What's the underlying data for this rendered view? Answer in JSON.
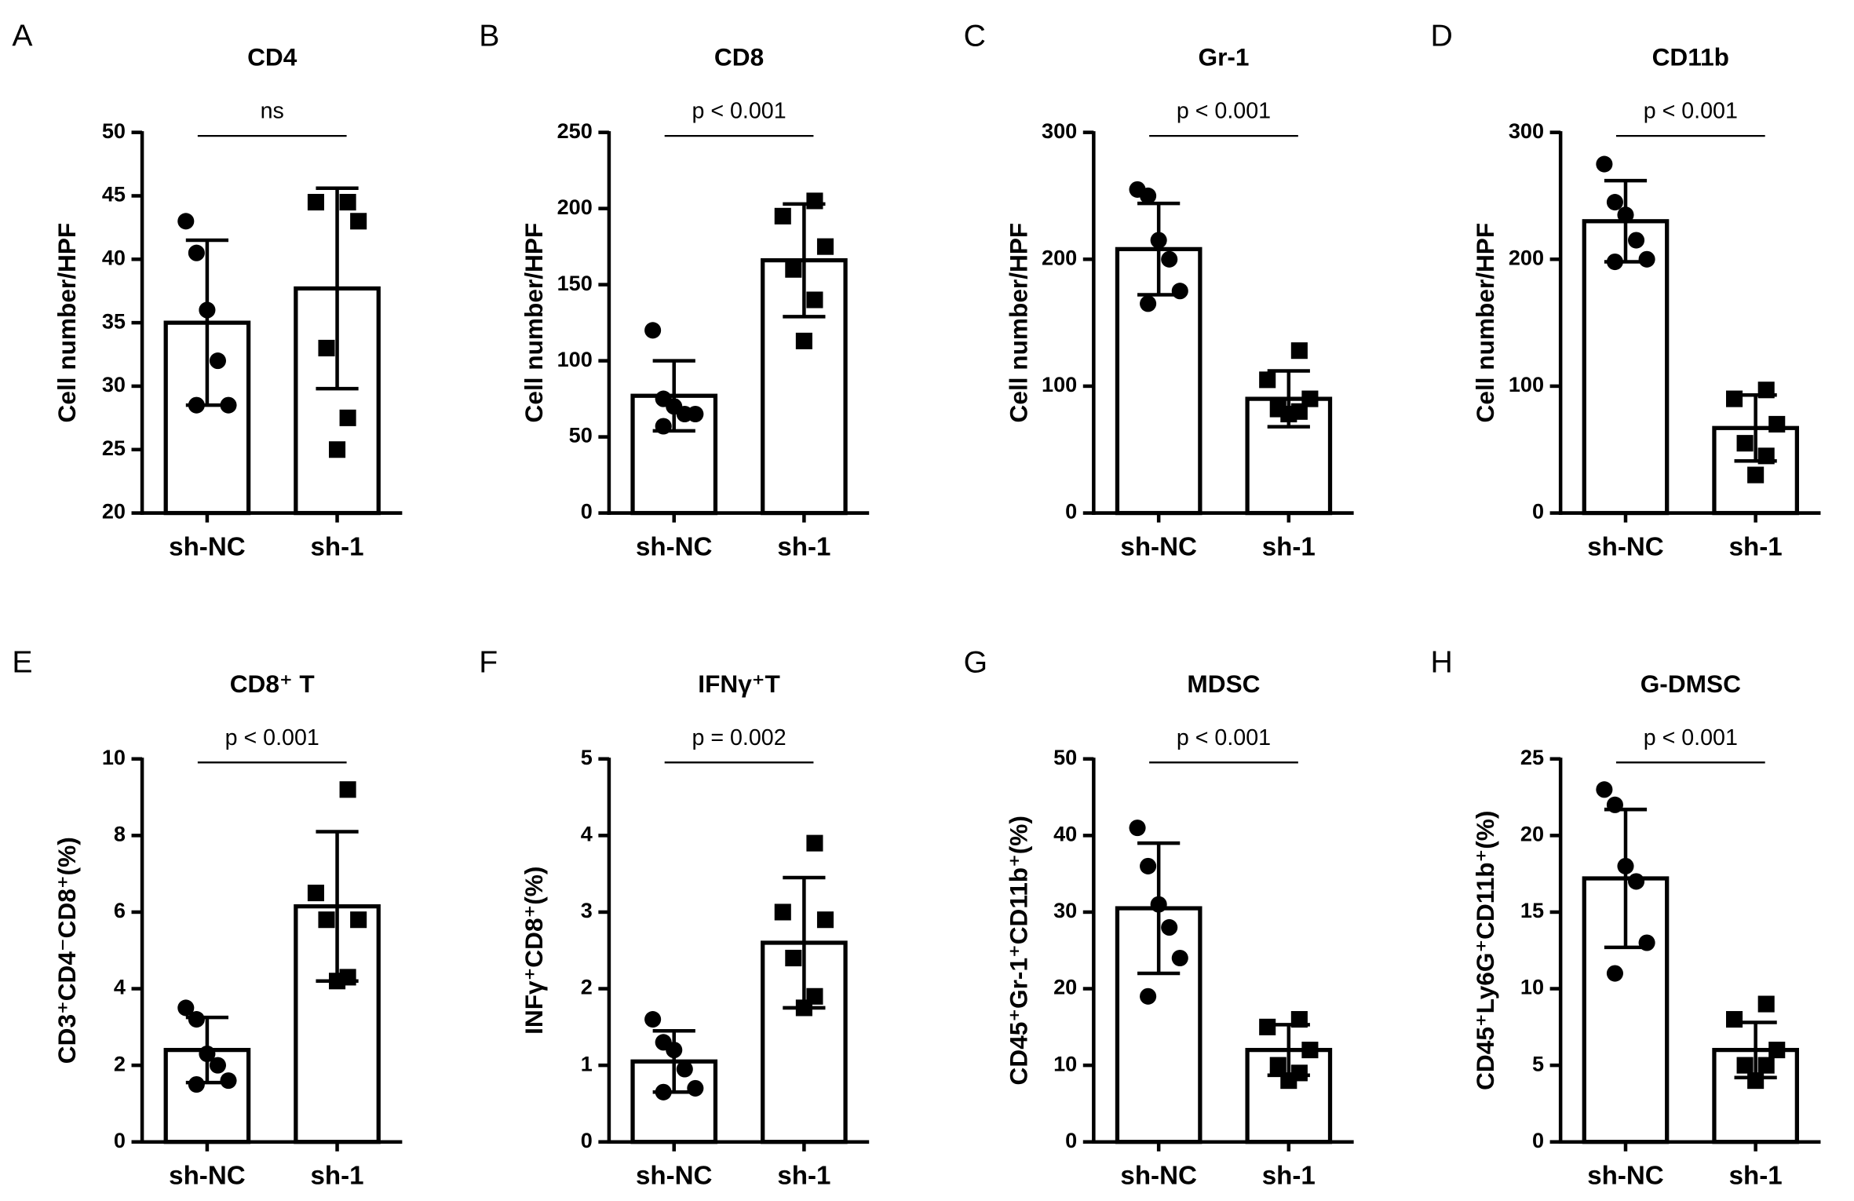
{
  "chart_data": [
    {
      "type": "bar",
      "panel": "A",
      "title": "CD4",
      "ylabel": "Cell number/HPF",
      "annotation": "ns",
      "categories": [
        "sh-NC",
        "sh-1"
      ],
      "values": [
        35,
        37.7
      ],
      "errors": [
        6.5,
        7.9
      ],
      "points": [
        [
          43,
          40.5,
          36,
          32,
          28.5,
          28.5
        ],
        [
          44.5,
          44.5,
          43,
          33,
          27.5,
          25
        ]
      ],
      "markers": [
        "circle",
        "square"
      ],
      "color": "#000000",
      "ylim": [
        20,
        50
      ],
      "yticks": [
        20,
        25,
        30,
        35,
        40,
        45,
        50
      ]
    },
    {
      "type": "bar",
      "panel": "B",
      "title": "CD8",
      "ylabel": "Cell number/HPF",
      "annotation": "p < 0.001",
      "categories": [
        "sh-NC",
        "sh-1"
      ],
      "values": [
        77,
        166
      ],
      "errors": [
        23,
        37
      ],
      "points": [
        [
          120,
          75,
          70,
          65,
          65,
          57
        ],
        [
          205,
          195,
          175,
          160,
          140,
          113
        ]
      ],
      "markers": [
        "circle",
        "square"
      ],
      "color": "#000000",
      "ylim": [
        0,
        250
      ],
      "yticks": [
        0,
        50,
        100,
        150,
        200,
        250
      ]
    },
    {
      "type": "bar",
      "panel": "C",
      "title": "Gr-1",
      "ylabel": "Cell number/HPF",
      "annotation": "p < 0.001",
      "categories": [
        "sh-NC",
        "sh-1"
      ],
      "values": [
        208,
        90
      ],
      "errors": [
        36,
        22
      ],
      "points": [
        [
          255,
          250,
          215,
          200,
          175,
          165
        ],
        [
          128,
          105,
          90,
          82,
          80,
          78
        ]
      ],
      "markers": [
        "circle",
        "square"
      ],
      "color": "#000000",
      "ylim": [
        0,
        300
      ],
      "yticks": [
        0,
        100,
        200,
        300
      ]
    },
    {
      "type": "bar",
      "panel": "D",
      "title": "CD11b",
      "ylabel": "Cell number/HPF",
      "annotation": "p < 0.001",
      "categories": [
        "sh-NC",
        "sh-1"
      ],
      "values": [
        230,
        67
      ],
      "errors": [
        32,
        26
      ],
      "points": [
        [
          275,
          245,
          235,
          215,
          200,
          198
        ],
        [
          97,
          90,
          70,
          55,
          45,
          30
        ]
      ],
      "markers": [
        "circle",
        "square"
      ],
      "color": "#000000",
      "ylim": [
        0,
        300
      ],
      "yticks": [
        0,
        100,
        200,
        300
      ]
    },
    {
      "type": "bar",
      "panel": "E",
      "title": "CD8⁺ T",
      "ylabel": "CD3⁺CD4⁻CD8⁺(%)",
      "annotation": "p < 0.001",
      "categories": [
        "sh-NC",
        "sh-1"
      ],
      "values": [
        2.4,
        6.15
      ],
      "errors": [
        0.85,
        1.95
      ],
      "points": [
        [
          3.5,
          3.2,
          2.3,
          2.0,
          1.6,
          1.5
        ],
        [
          9.2,
          6.5,
          5.8,
          5.8,
          4.3,
          4.2
        ]
      ],
      "markers": [
        "circle",
        "square"
      ],
      "color": "#000000",
      "ylim": [
        0,
        10
      ],
      "yticks": [
        0,
        2,
        4,
        6,
        8,
        10
      ]
    },
    {
      "type": "bar",
      "panel": "F",
      "title": "IFNγ⁺T",
      "ylabel": "INFγ⁺CD8⁺(%)",
      "annotation": "p = 0.002",
      "categories": [
        "sh-NC",
        "sh-1"
      ],
      "values": [
        1.05,
        2.6
      ],
      "errors": [
        0.4,
        0.85
      ],
      "points": [
        [
          1.6,
          1.3,
          1.2,
          0.95,
          0.7,
          0.65
        ],
        [
          3.9,
          3.0,
          2.9,
          2.4,
          1.9,
          1.75
        ]
      ],
      "markers": [
        "circle",
        "square"
      ],
      "color": "#000000",
      "ylim": [
        0,
        5
      ],
      "yticks": [
        0,
        1,
        2,
        3,
        4,
        5
      ]
    },
    {
      "type": "bar",
      "panel": "G",
      "title": "MDSC",
      "ylabel": "CD45⁺Gr-1⁺CD11b⁺(%)",
      "annotation": "p < 0.001",
      "categories": [
        "sh-NC",
        "sh-1"
      ],
      "values": [
        30.5,
        12
      ],
      "errors": [
        8.5,
        3.3
      ],
      "points": [
        [
          41,
          36,
          31,
          28,
          24,
          19
        ],
        [
          16,
          15,
          12,
          10,
          9,
          8
        ]
      ],
      "markers": [
        "circle",
        "square"
      ],
      "color": "#000000",
      "ylim": [
        0,
        50
      ],
      "yticks": [
        0,
        10,
        20,
        30,
        40,
        50
      ]
    },
    {
      "type": "bar",
      "panel": "H",
      "title": "G-DMSC",
      "ylabel": "CD45⁺Ly6G⁺CD11b⁺(%)",
      "annotation": "p < 0.001",
      "categories": [
        "sh-NC",
        "sh-1"
      ],
      "values": [
        17.2,
        6
      ],
      "errors": [
        4.5,
        1.8
      ],
      "points": [
        [
          23,
          22,
          18,
          17,
          13,
          11
        ],
        [
          9,
          8,
          6,
          5,
          5,
          4
        ]
      ],
      "markers": [
        "circle",
        "square"
      ],
      "color": "#000000",
      "ylim": [
        0,
        25
      ],
      "yticks": [
        0,
        5,
        10,
        15,
        20,
        25
      ]
    }
  ]
}
